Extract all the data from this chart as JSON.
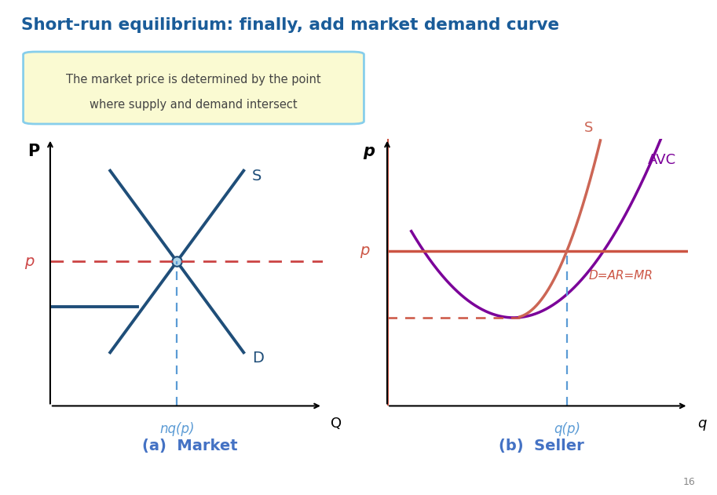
{
  "title": "Short-run equilibrium: finally, add market demand curve",
  "title_color": "#1A5C99",
  "title_fontsize": 15.5,
  "box_text_line1": "The market price is determined by the point",
  "box_text_line2": "where supply and demand intersect",
  "box_facecolor": "#FAFAD2",
  "box_edgecolor": "#87CEEB",
  "label_a": "(a)  Market",
  "label_b": "(b)  Seller",
  "label_color": "#4472C4",
  "footnote": "16",
  "market_curve_color": "#1F4E79",
  "market_p_line_color": "#CC4444",
  "market_vline_color": "#5B9BD5",
  "seller_avc_color": "#7B0099",
  "seller_s_color": "#CC6655",
  "seller_d_color": "#CC5544",
  "seller_min_dashed_color": "#CC5544",
  "seller_vline_color": "#5B9BD5",
  "background_color": "#FFFFFF",
  "eq_dot_color": "#B0D4E8"
}
